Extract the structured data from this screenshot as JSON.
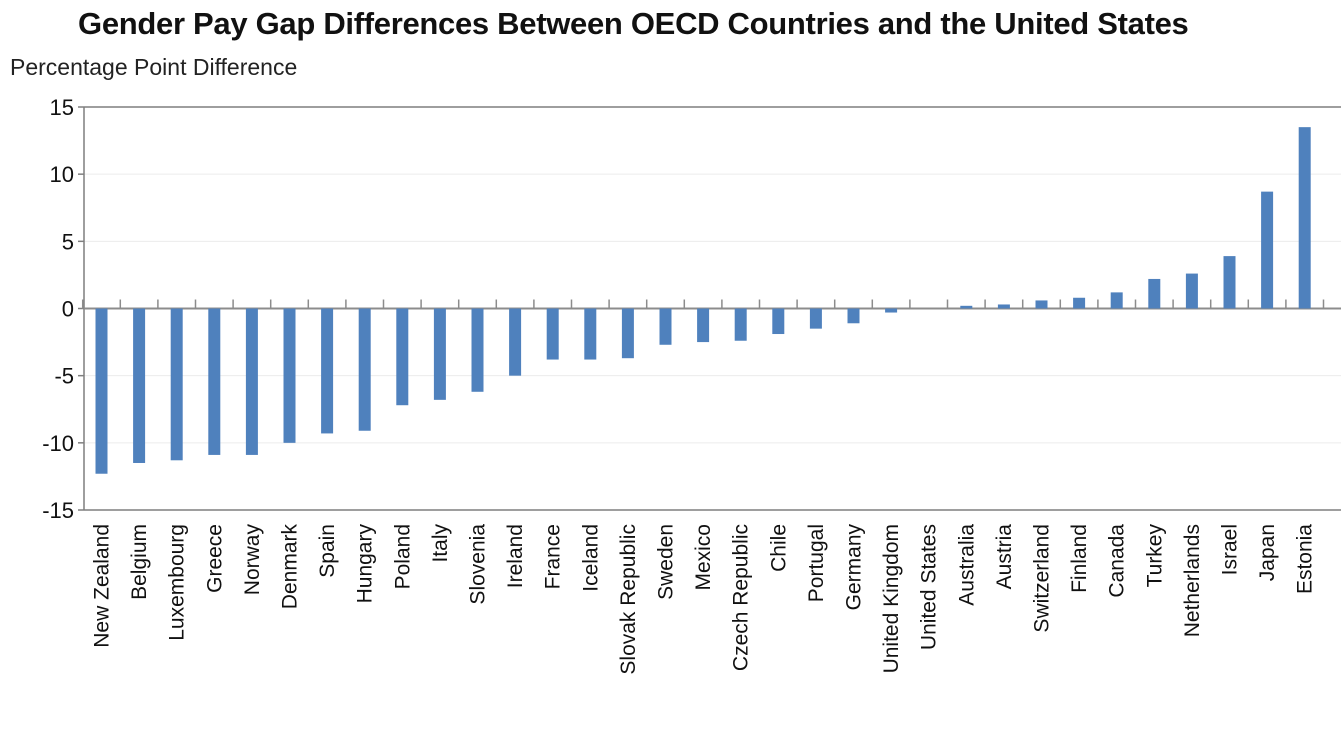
{
  "chart_data": {
    "type": "bar",
    "title": "Gender Pay Gap Differences Between OECD Countries and the United States",
    "subtitle": "Percentage Point Difference",
    "ylim": [
      -15,
      15
    ],
    "yticks": [
      15,
      10,
      5,
      0,
      -5,
      -10,
      -15
    ],
    "yticklabels": [
      "15",
      "10",
      "5",
      "0",
      "-5",
      "-10",
      "-15"
    ],
    "grid": true,
    "legend": "none",
    "bar_color": "#4f81bd",
    "categories": [
      "New Zealand",
      "Belgium",
      "Luxembourg",
      "Greece",
      "Norway",
      "Denmark",
      "Spain",
      "Hungary",
      "Poland",
      "Italy",
      "Slovenia",
      "Ireland",
      "France",
      "Iceland",
      "Slovak Republic",
      "Sweden",
      "Mexico",
      "Czech Republic",
      "Chile",
      "Portugal",
      "Germany",
      "United Kingdom",
      "United States",
      "Australia",
      "Austria",
      "Switzerland",
      "Finland",
      "Canada",
      "Turkey",
      "Netherlands",
      "Israel",
      "Japan",
      "Estonia"
    ],
    "values": [
      -12.3,
      -11.5,
      -11.3,
      -10.9,
      -10.9,
      -10.0,
      -9.3,
      -9.1,
      -7.2,
      -6.8,
      -6.2,
      -5.0,
      -3.8,
      -3.8,
      -3.7,
      -2.7,
      -2.5,
      -2.4,
      -1.9,
      -1.5,
      -1.1,
      -0.3,
      0.0,
      0.2,
      0.3,
      0.6,
      0.8,
      1.2,
      2.2,
      2.6,
      3.9,
      8.7,
      13.5
    ]
  }
}
